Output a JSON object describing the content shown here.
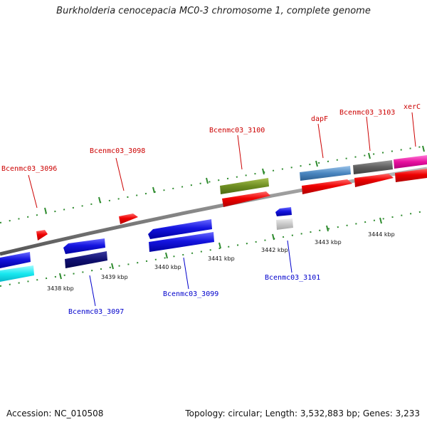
{
  "title": "Burkholderia cenocepacia MC0-3 chromosome 1, complete genome",
  "footer": {
    "accession": "Accession: NC_010508",
    "summary": "Topology: circular; Length: 3,532,883 bp; Genes: 3,233"
  },
  "ticks": [
    {
      "label": "3438 kbp"
    },
    {
      "label": "3439 kbp"
    },
    {
      "label": "3440 kbp"
    },
    {
      "label": "3441 kbp"
    },
    {
      "label": "3442 kbp"
    },
    {
      "label": "3443 kbp"
    },
    {
      "label": "3444 kbp"
    }
  ],
  "labels_top": [
    {
      "text": "Bcenmc03_3096"
    },
    {
      "text": "Bcenmc03_3098"
    },
    {
      "text": "Bcenmc03_3100"
    },
    {
      "text": "dapF"
    },
    {
      "text": "Bcenmc03_3103"
    },
    {
      "text": "xerC"
    }
  ],
  "labels_bottom": [
    {
      "text": "Bcenmc03_3097"
    },
    {
      "text": "Bcenmc03_3099"
    },
    {
      "text": "Bcenmc03_3101"
    }
  ],
  "colors": {
    "backbone": "#8c8c8c",
    "forward_cds": "#ee0000",
    "reverse_cds": "#1010dd",
    "label_forward": "#cc0000",
    "label_reverse": "#0000cc",
    "tick": "#2e8b2e"
  }
}
